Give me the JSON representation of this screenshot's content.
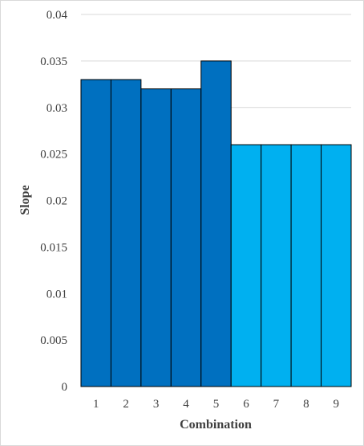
{
  "chart_data": {
    "type": "bar",
    "categories": [
      "1",
      "2",
      "3",
      "4",
      "5",
      "6",
      "7",
      "8",
      "9"
    ],
    "values": [
      0.033,
      0.033,
      0.032,
      0.032,
      0.035,
      0.026,
      0.026,
      0.026,
      0.026
    ],
    "bar_colors": [
      "#0070C0",
      "#0070C0",
      "#0070C0",
      "#0070C0",
      "#0070C0",
      "#00B0F0",
      "#00B0F0",
      "#00B0F0",
      "#00B0F0"
    ],
    "bar_outline_color": "#000000",
    "gridline_color": "#d9d9d9",
    "xlabel": "Combination",
    "ylabel": "Slope",
    "ylim": [
      0,
      0.04
    ],
    "yticks": [
      "0",
      "0.005",
      "0.01",
      "0.015",
      "0.02",
      "0.025",
      "0.03",
      "0.035",
      "0.04"
    ],
    "grid": true,
    "legend": "none"
  }
}
